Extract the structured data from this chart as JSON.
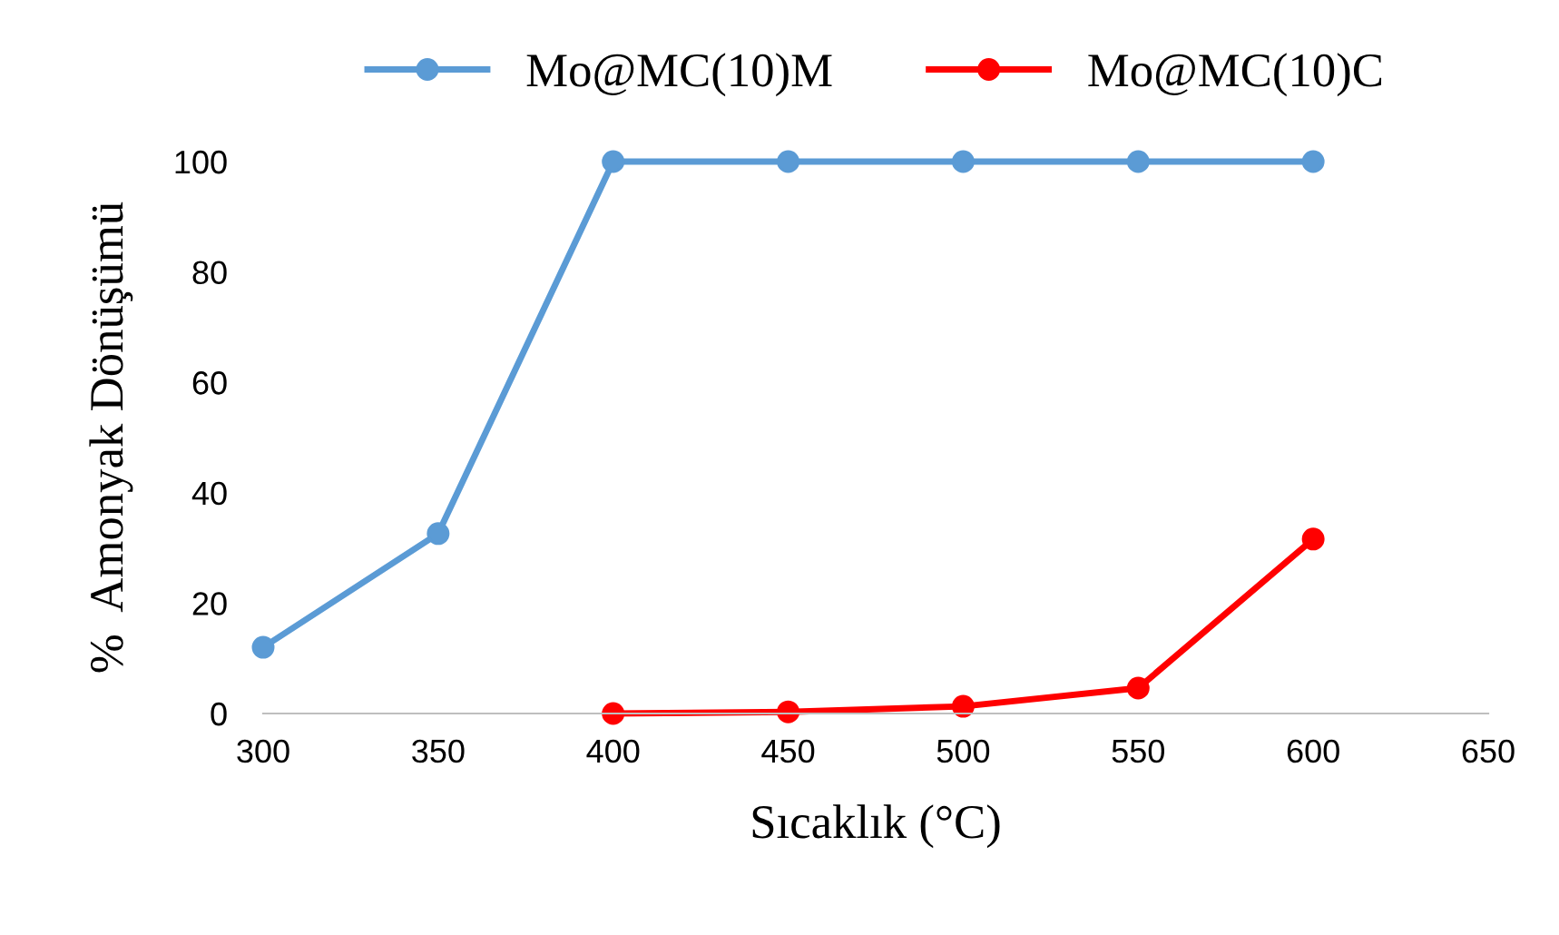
{
  "chart_data": {
    "type": "line",
    "xlabel": "Sıcaklık (°C)",
    "ylabel": "%  Amonyak Dönüşümü",
    "x": [
      300,
      350,
      400,
      450,
      500,
      550,
      600
    ],
    "series": [
      {
        "name": "Mo@MC(10)M",
        "color": "#5b9bd5",
        "values": [
          12,
          32.6,
          100,
          100,
          100,
          100,
          100
        ]
      },
      {
        "name": "Mo@MC(10)C",
        "color": "#ff0000",
        "values": [
          null,
          null,
          0,
          0.3,
          1.3,
          4.6,
          31.6
        ]
      }
    ],
    "xlim": [
      300,
      650
    ],
    "xticks": [
      300,
      350,
      400,
      450,
      500,
      550,
      600,
      650
    ],
    "ylim": [
      0,
      100
    ],
    "yticks": [
      0,
      20,
      40,
      60,
      80,
      100
    ],
    "grid": false,
    "legend": "top",
    "marker": "circle",
    "line_style": "solid"
  }
}
